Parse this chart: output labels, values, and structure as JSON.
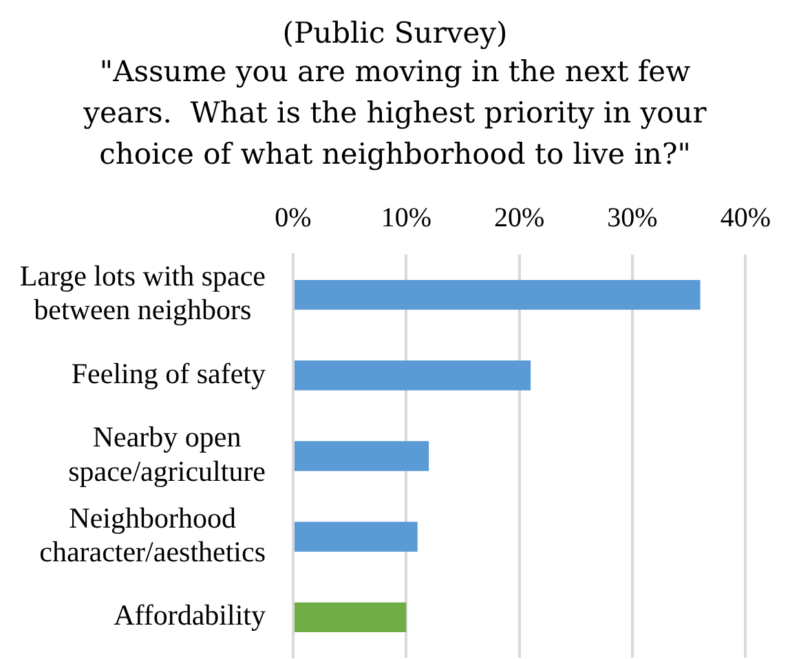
{
  "chart_data": {
    "type": "bar",
    "orientation": "horizontal",
    "title": "(Public Survey)",
    "subtitle": "\"Assume you are moving in the next few years.  What is the highest priority in your choice of what neighborhood to live in?\"",
    "categories": [
      "Large lots with space between neighbors",
      "Feeling of safety",
      "Nearby open space/agriculture",
      "Neighborhood character/aesthetics",
      "Affordability"
    ],
    "values": [
      36,
      21,
      12,
      11,
      10
    ],
    "colors": [
      "#5b9bd5",
      "#5b9bd5",
      "#5b9bd5",
      "#5b9bd5",
      "#70ad47"
    ],
    "xlim": [
      0,
      40
    ],
    "xticks": [
      {
        "value": 0,
        "label": "0%"
      },
      {
        "value": 10,
        "label": "10%"
      },
      {
        "value": 20,
        "label": "20%"
      },
      {
        "value": 30,
        "label": "30%"
      },
      {
        "value": 40,
        "label": "40%"
      }
    ],
    "grid": "x"
  }
}
